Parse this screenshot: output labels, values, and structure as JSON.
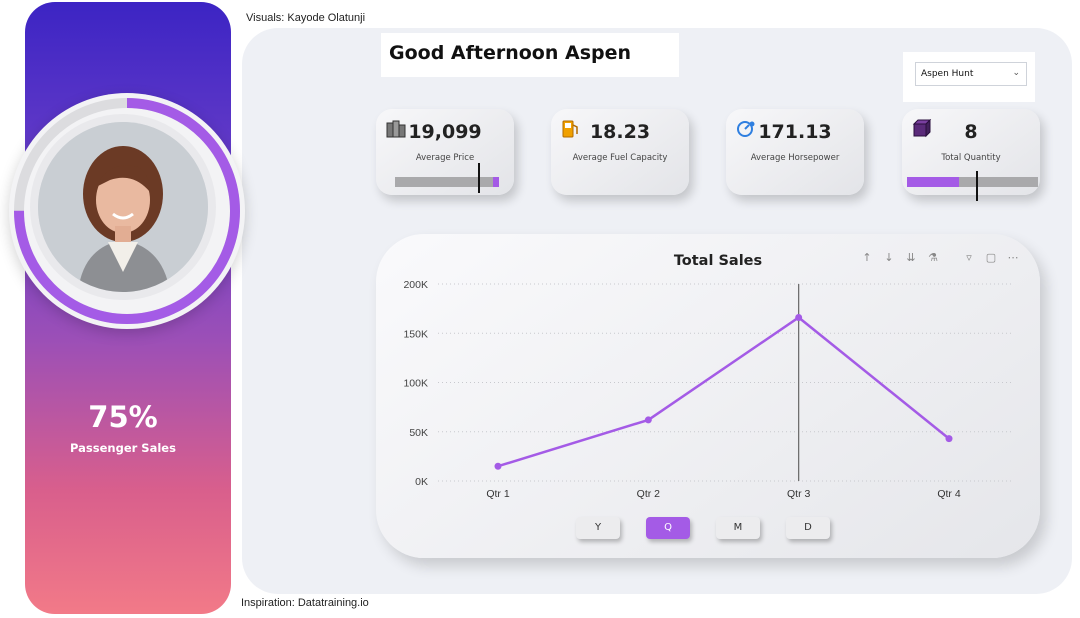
{
  "credits": {
    "visuals": "Visuals: Kayode Olatunji",
    "inspiration": "Inspiration: Datatraining.io"
  },
  "profile": {
    "percent": "75%",
    "caption": "Passenger Sales",
    "progress": 0.75
  },
  "greeting": "Good Afternoon Aspen",
  "user_select": {
    "selected": "Aspen Hunt",
    "chevron_icon": "chevron-down-icon"
  },
  "cards": [
    {
      "value": "19,099",
      "label": "Average Price",
      "icon": "money-stack-icon",
      "bar_fill": 0.06,
      "bar_marker": 0.8
    },
    {
      "value": "18.23",
      "label": "Average Fuel Capacity",
      "icon": "fuel-pump-icon"
    },
    {
      "value": "171.13",
      "label": "Average Horsepower",
      "icon": "gauge-icon"
    },
    {
      "value": "8",
      "label": "Total Quantity",
      "icon": "cube-stack-icon",
      "bar_fill": 0.4,
      "bar_marker": 0.53
    }
  ],
  "period_buttons": [
    {
      "label": "Y",
      "active": false
    },
    {
      "label": "Q",
      "active": true
    },
    {
      "label": "M",
      "active": false
    },
    {
      "label": "D",
      "active": false
    }
  ],
  "colors": {
    "accent": "#a45be6",
    "panel_top": "#3c24c4",
    "panel_bottom": "#f27a88"
  },
  "chart_data": {
    "type": "line",
    "title": "Total Sales",
    "categories": [
      "Qtr 1",
      "Qtr 2",
      "Qtr 3",
      "Qtr 4"
    ],
    "values": [
      15000,
      62000,
      166000,
      43000
    ],
    "y_ticks": [
      "0K",
      "50K",
      "100K",
      "150K",
      "200K"
    ],
    "ylim": [
      0,
      200000
    ],
    "grid": true,
    "hover_category": "Qtr 3",
    "line_color": "#a45be6"
  }
}
